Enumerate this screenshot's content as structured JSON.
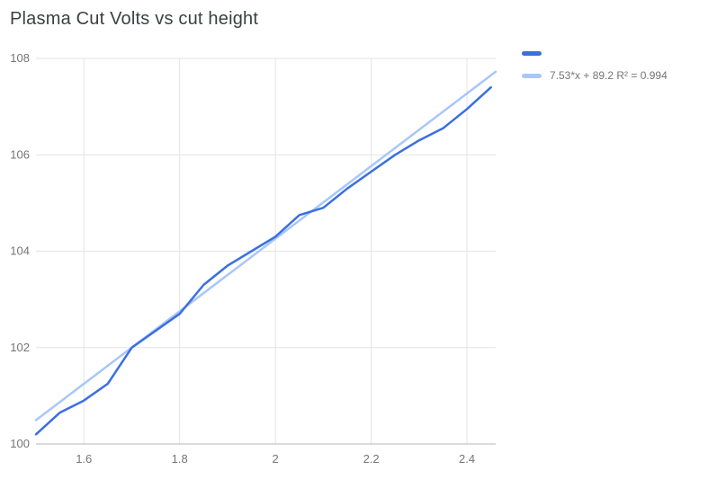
{
  "chart_data": {
    "type": "line",
    "title": "Plasma Cut Volts vs cut height",
    "xlabel": "",
    "ylabel": "",
    "xlim": [
      1.5,
      2.46
    ],
    "ylim": [
      100,
      108
    ],
    "grid": true,
    "legend_position": "top-right",
    "xticks": [
      {
        "value": 1.6,
        "label": "1.6"
      },
      {
        "value": 1.8,
        "label": "1.8"
      },
      {
        "value": 2.0,
        "label": "2"
      },
      {
        "value": 2.2,
        "label": "2.2"
      },
      {
        "value": 2.4,
        "label": "2.4"
      }
    ],
    "yticks": [
      {
        "value": 100,
        "label": "100"
      },
      {
        "value": 102,
        "label": "102"
      },
      {
        "value": 104,
        "label": "104"
      },
      {
        "value": 106,
        "label": "106"
      },
      {
        "value": 108,
        "label": "108"
      }
    ],
    "x": [
      1.5,
      1.55,
      1.6,
      1.65,
      1.7,
      1.75,
      1.8,
      1.85,
      1.9,
      1.95,
      2.0,
      2.05,
      2.1,
      2.15,
      2.2,
      2.25,
      2.3,
      2.35,
      2.4,
      2.45
    ],
    "series": [
      {
        "name": "",
        "color": "#3b6fe0",
        "values": [
          100.2,
          100.65,
          100.9,
          101.25,
          102.0,
          102.35,
          102.7,
          103.3,
          103.7,
          104.0,
          104.3,
          104.75,
          104.9,
          105.3,
          105.65,
          106.0,
          106.3,
          106.55,
          106.95,
          107.4
        ]
      },
      {
        "name": "7.53*x + 89.2 R² = 0.994",
        "type": "trendline",
        "color": "#a8c7fa",
        "slope": 7.53,
        "intercept": 89.2
      }
    ],
    "colors": {
      "gridline": "#e3e3e3",
      "axis_line": "#b7b7b7",
      "tick_label": "#757575",
      "title": "#3c4043",
      "legend_text": "#757575"
    }
  }
}
